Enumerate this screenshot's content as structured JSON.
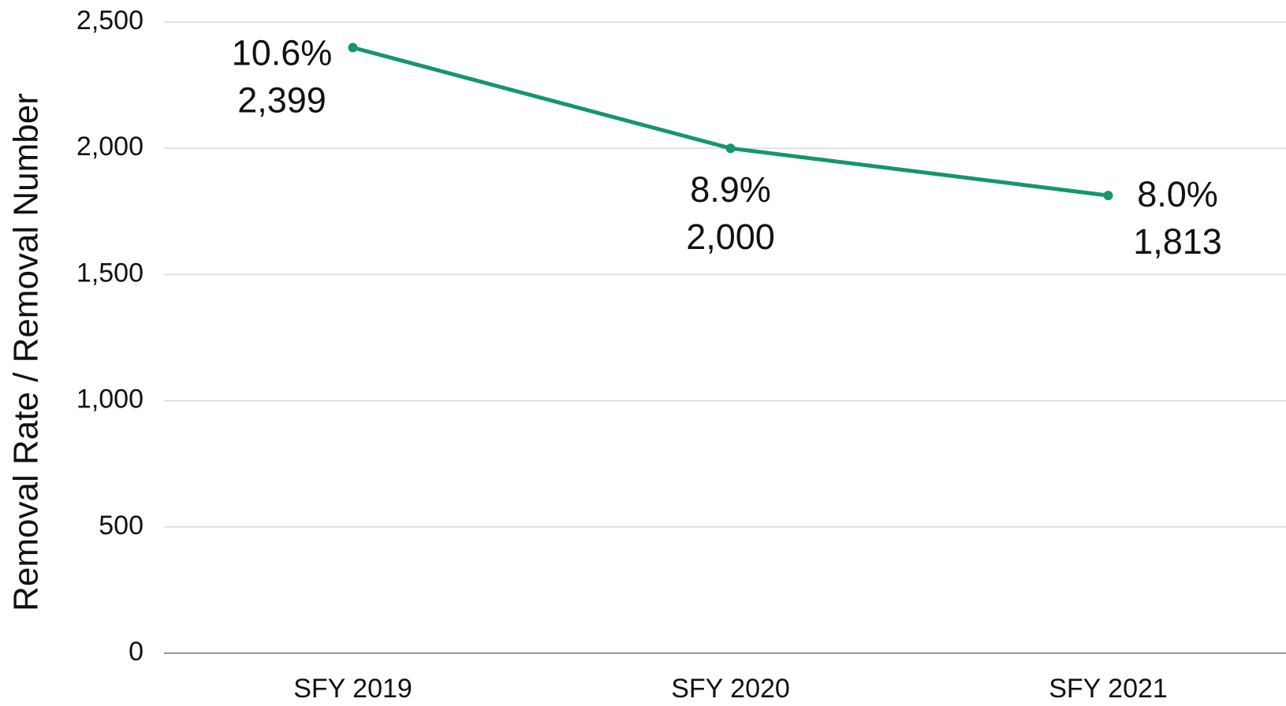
{
  "chart_data": {
    "type": "line",
    "y_label": "Removal Rate / Removal Number",
    "categories": [
      "SFY 2019",
      "SFY 2020",
      "SFY 2021"
    ],
    "series": [
      {
        "name": "Removal Number",
        "color": "#159570",
        "values": [
          2399,
          2000,
          1813
        ],
        "value_labels": [
          "2,399",
          "2,000",
          "1,813"
        ]
      }
    ],
    "rates": [
      10.6,
      8.9,
      8.0
    ],
    "rate_labels": [
      "10.6%",
      "8.9%",
      "8.0%"
    ],
    "ylim": [
      0,
      2500
    ],
    "yticks": [
      0,
      500,
      {
        "value": 1000,
        "label": "1,000"
      },
      {
        "value": 1500,
        "label": "1,500"
      },
      {
        "value": 2000,
        "label": "2,000"
      },
      {
        "value": 2500,
        "label": "2,500"
      }
    ],
    "grid": true
  }
}
